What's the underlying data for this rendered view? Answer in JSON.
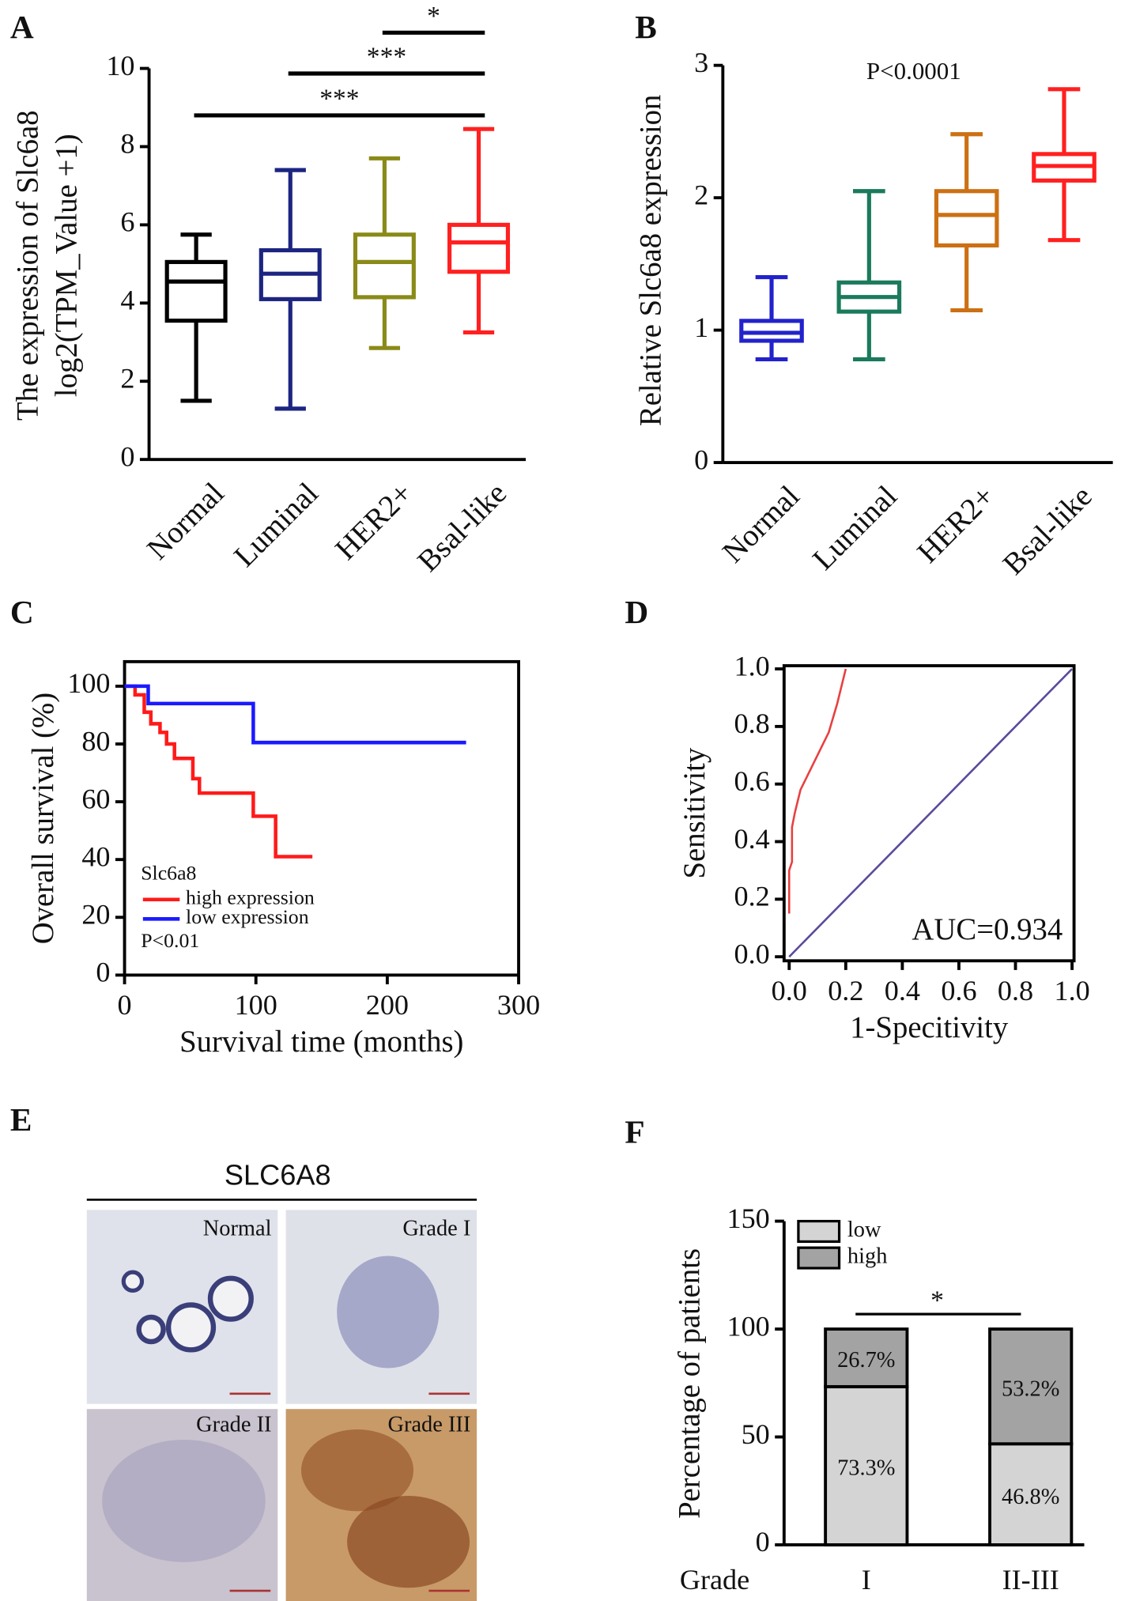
{
  "panel_labels": [
    "A",
    "B",
    "C",
    "D",
    "E",
    "F"
  ],
  "chart_data": [
    {
      "type": "box",
      "categories": [
        "Normal",
        "Luminal",
        "HER2+",
        "Bsal-like"
      ],
      "y_label": [
        "The expression of Slc6a8",
        "log2(TPM_Value +1)"
      ],
      "ylim": [
        0,
        10
      ],
      "yticks": [
        0,
        2,
        4,
        6,
        8,
        10
      ],
      "boxes": [
        {
          "min": 1.5,
          "q1": 3.55,
          "median": 4.55,
          "q3": 5.05,
          "max": 5.75,
          "color": "#000000"
        },
        {
          "min": 1.3,
          "q1": 4.1,
          "median": 4.75,
          "q3": 5.35,
          "max": 7.4,
          "color": "#1c2580"
        },
        {
          "min": 2.85,
          "q1": 4.15,
          "median": 5.05,
          "q3": 5.75,
          "max": 7.7,
          "color": "#8a8a18"
        },
        {
          "min": 3.25,
          "q1": 4.8,
          "median": 5.55,
          "q3": 6.0,
          "max": 8.45,
          "color": "#ff2020"
        }
      ],
      "annotations": [
        "*",
        "***",
        "***"
      ]
    },
    {
      "type": "box",
      "categories": [
        "Normal",
        "Luminal",
        "HER2+",
        "Bsal-like"
      ],
      "y_label": "Relative Slc6a8 expression",
      "ylim": [
        0,
        3
      ],
      "yticks": [
        0,
        1,
        2,
        3
      ],
      "boxes": [
        {
          "min": 0.78,
          "q1": 0.92,
          "median": 0.98,
          "q3": 1.07,
          "max": 1.4,
          "color": "#2222cc"
        },
        {
          "min": 0.78,
          "q1": 1.14,
          "median": 1.25,
          "q3": 1.36,
          "max": 2.05,
          "color": "#1a7a5c"
        },
        {
          "min": 1.15,
          "q1": 1.64,
          "median": 1.87,
          "q3": 2.05,
          "max": 2.48,
          "color": "#cc7014"
        },
        {
          "min": 1.68,
          "q1": 2.13,
          "median": 2.24,
          "q3": 2.33,
          "max": 2.82,
          "color": "#ff2020"
        }
      ],
      "annotation": "P<0.0001"
    },
    {
      "type": "line",
      "x_label": "Survival time (months)",
      "y_label": "Overall survival (%)",
      "legend_title": "Slc6a8",
      "xlim": [
        0,
        300
      ],
      "xticks": [
        0,
        100,
        200,
        300
      ],
      "ylim": [
        0,
        108.5
      ],
      "yticks": [
        0,
        20,
        40,
        60,
        80,
        100
      ],
      "series": [
        {
          "name": "high expression",
          "color": "#ff1a1a",
          "x": [
            0,
            8,
            8,
            15,
            15,
            20,
            20,
            27,
            27,
            32,
            32,
            38,
            38,
            52,
            52,
            57,
            57,
            98,
            98,
            115,
            115,
            143
          ],
          "values": [
            100,
            100,
            97,
            97,
            91,
            91,
            87,
            87,
            84,
            84,
            80,
            80,
            75,
            75,
            68,
            68,
            63,
            63,
            55,
            55,
            41,
            41
          ]
        },
        {
          "name": "low expression",
          "color": "#1a1aff",
          "x": [
            0,
            18,
            18,
            98,
            98,
            260
          ],
          "values": [
            100,
            100,
            94,
            94,
            80.5,
            80.5
          ]
        }
      ],
      "annotation": "P<0.01"
    },
    {
      "type": "line",
      "x_label": "1-Specitivity",
      "y_label": "Sensitivity",
      "xlim": [
        -0.018,
        1.007
      ],
      "xticks": [
        {
          "value": 0,
          "label": "0.0"
        },
        {
          "value": 0.2,
          "label": "0.2"
        },
        {
          "value": 0.4,
          "label": "0.4"
        },
        {
          "value": 0.6,
          "label": "0.6"
        },
        {
          "value": 0.8,
          "label": "0.8"
        },
        {
          "value": 1,
          "label": "1.0"
        }
      ],
      "ylim": [
        -0.014,
        1.011
      ],
      "yticks": [
        {
          "value": 0,
          "label": "0.0"
        },
        {
          "value": 0.2,
          "label": "0.2"
        },
        {
          "value": 0.4,
          "label": "0.4"
        },
        {
          "value": 0.6,
          "label": "0.6"
        },
        {
          "value": 0.8,
          "label": "0.8"
        },
        {
          "value": 1,
          "label": "1.0"
        }
      ],
      "series": [
        {
          "color": "#e84040",
          "x": [
            0,
            0,
            0.01,
            0.01,
            0.02,
            0.04,
            0.06,
            0.1,
            0.14,
            0.17,
            0.2
          ],
          "values": [
            0.15,
            0.3,
            0.33,
            0.45,
            0.5,
            0.58,
            0.62,
            0.7,
            0.78,
            0.88,
            1
          ]
        },
        {
          "color": "#5c4a9c",
          "x": [
            0,
            1
          ],
          "values": [
            0,
            1
          ]
        }
      ],
      "annotation": "AUC=0.934"
    },
    {
      "type": "bar",
      "stacked": true,
      "x_label": "Grade",
      "y_label": "Percentage of patients",
      "categories": [
        "I",
        "II-III"
      ],
      "ylim": [
        0,
        150
      ],
      "yticks": [
        0,
        50,
        100,
        150
      ],
      "series": [
        {
          "name": "low",
          "color": "#d4d4d4",
          "values": [
            73.3,
            46.8
          ],
          "value_labels": [
            "73.3%",
            "46.8%"
          ]
        },
        {
          "name": "high",
          "color": "#a3a3a3",
          "values": [
            26.7,
            53.2
          ],
          "value_labels": [
            "26.7%",
            "53.2%"
          ]
        }
      ],
      "annotation": "*"
    }
  ],
  "image_panel": {
    "title": "SLC6A8",
    "images": [
      "Normal",
      "Grade I",
      "Grade II",
      "Grade III"
    ]
  }
}
